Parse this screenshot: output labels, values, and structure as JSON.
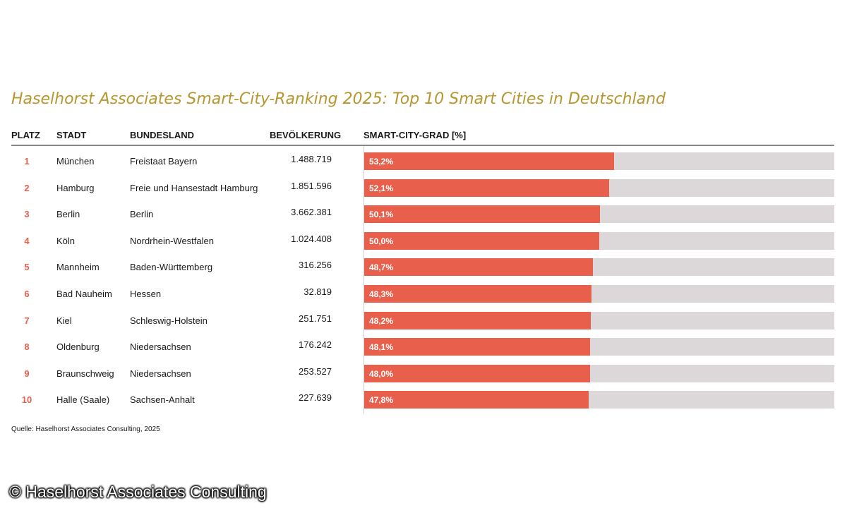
{
  "title": "Haselhorst Associates Smart-City-Ranking 2025: Top 10 Smart Cities in Deutschland",
  "headers": {
    "platz": "PLATZ",
    "stadt": "STADT",
    "bundesland": "BUNDESLAND",
    "bevoelkerung": "BEVÖLKERUNG",
    "grad": "SMART-CITY-GRAD [%]"
  },
  "source": "Quelle: Haselhorst Associates Consulting, 2025",
  "copyright": "© Haselhorst Associates Consulting",
  "colors": {
    "title": "#b8962e",
    "bar": "#e8604c",
    "track": "#dcd8d9",
    "rank": "#e8604c"
  },
  "chart_data": {
    "type": "bar",
    "orientation": "horizontal",
    "xlim": [
      0,
      100
    ],
    "rows": [
      {
        "platz": "1",
        "stadt": "München",
        "bundesland": "Freistaat Bayern",
        "bevoelkerung": "1.488.719",
        "value": 53.2,
        "label": "53,2%"
      },
      {
        "platz": "2",
        "stadt": "Hamburg",
        "bundesland": "Freie und Hansestadt Hamburg",
        "bevoelkerung": "1.851.596",
        "value": 52.1,
        "label": "52,1%"
      },
      {
        "platz": "3",
        "stadt": "Berlin",
        "bundesland": "Berlin",
        "bevoelkerung": "3.662.381",
        "value": 50.1,
        "label": "50,1%"
      },
      {
        "platz": "4",
        "stadt": "Köln",
        "bundesland": "Nordrhein-Westfalen",
        "bevoelkerung": "1.024.408",
        "value": 50.0,
        "label": "50,0%"
      },
      {
        "platz": "5",
        "stadt": "Mannheim",
        "bundesland": "Baden-Württemberg",
        "bevoelkerung": "316.256",
        "value": 48.7,
        "label": "48,7%"
      },
      {
        "platz": "6",
        "stadt": "Bad Nauheim",
        "bundesland": "Hessen",
        "bevoelkerung": "32.819",
        "value": 48.3,
        "label": "48,3%"
      },
      {
        "platz": "7",
        "stadt": "Kiel",
        "bundesland": "Schleswig-Holstein",
        "bevoelkerung": "251.751",
        "value": 48.2,
        "label": "48,2%"
      },
      {
        "platz": "8",
        "stadt": "Oldenburg",
        "bundesland": "Niedersachsen",
        "bevoelkerung": "176.242",
        "value": 48.1,
        "label": "48,1%"
      },
      {
        "platz": "9",
        "stadt": "Braunschweig",
        "bundesland": "Niedersachsen",
        "bevoelkerung": "253.527",
        "value": 48.0,
        "label": "48,0%"
      },
      {
        "platz": "10",
        "stadt": "Halle (Saale)",
        "bundesland": "Sachsen-Anhalt",
        "bevoelkerung": "227.639",
        "value": 47.8,
        "label": "47,8%"
      }
    ]
  }
}
